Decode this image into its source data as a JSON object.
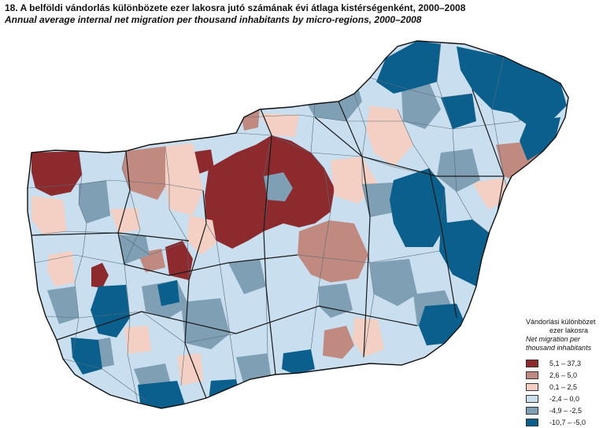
{
  "title": "18. A belföldi vándorlás különbözete ezer lakosra jutó számának évi átlaga kistérségenként, 2000–2008",
  "subtitle": "Annual average internal net migration per thousand inhabitants by micro-regions, 2000–2008",
  "legend": {
    "heading_hu_1": "Vándorlási különbözet",
    "heading_hu_2": "ezer lakosra",
    "heading_en_1": "Net migration per",
    "heading_en_2": "thousand inhabitants",
    "items": [
      {
        "label": "5,1 – 37,3",
        "color": "#8c2a2e"
      },
      {
        "label": "2,6 –   5,0",
        "color": "#c08a80"
      },
      {
        "label": "0,1 –   2,5",
        "color": "#f3d0c3"
      },
      {
        "label": "-2,4 –   0,0",
        "color": "#c9dff0"
      },
      {
        "label": "-4,9 – -2,5",
        "color": "#7f9fb4"
      },
      {
        "label": "-10,7 – -5,0",
        "color": "#0a5f8c"
      }
    ]
  }
}
